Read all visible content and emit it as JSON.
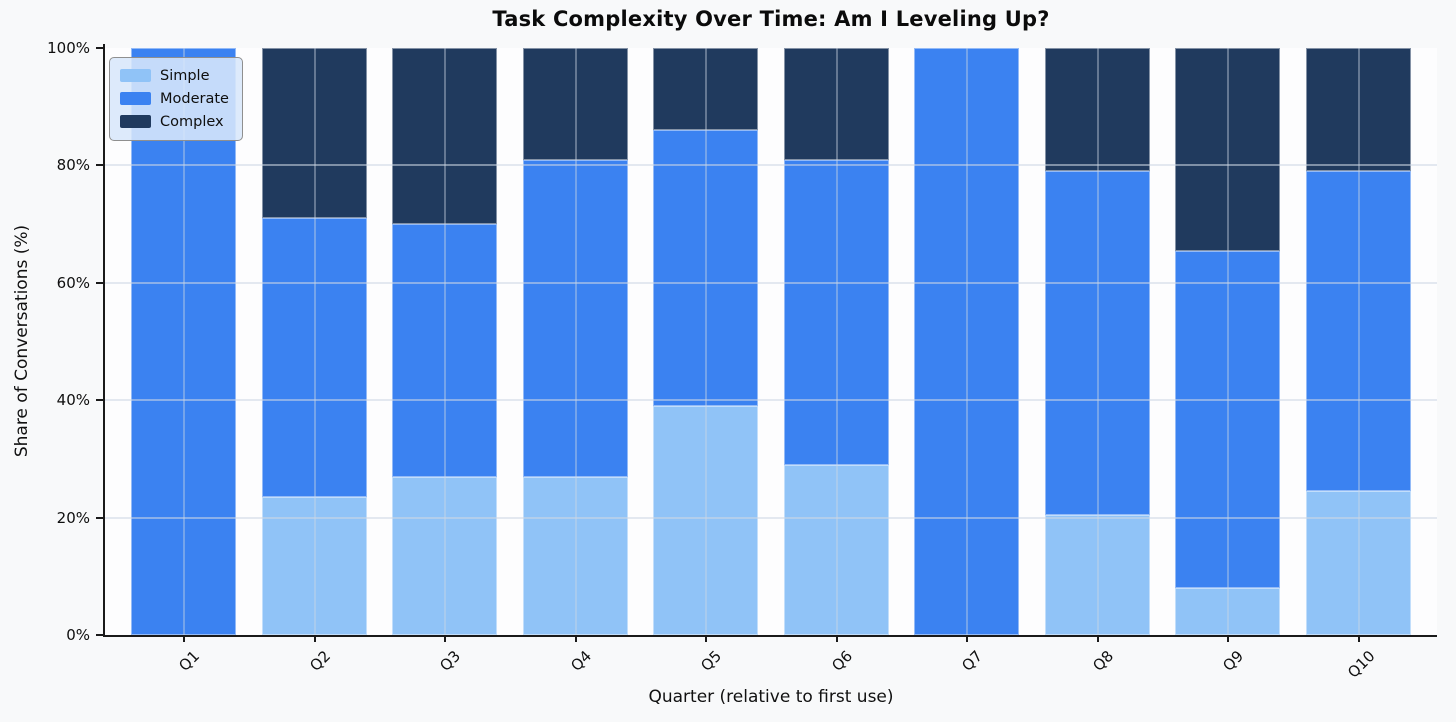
{
  "chart_data": {
    "type": "bar",
    "stacked": true,
    "title": "Task Complexity Over Time: Am I Leveling Up?",
    "xlabel": "Quarter (relative to first use)",
    "ylabel": "Share of Conversations (%)",
    "categories": [
      "Q1",
      "Q2",
      "Q3",
      "Q4",
      "Q5",
      "Q6",
      "Q7",
      "Q8",
      "Q9",
      "Q10"
    ],
    "series": [
      {
        "name": "Simple",
        "color": "#90C3F7",
        "values": [
          0,
          23.5,
          27,
          27,
          39,
          29,
          0,
          20.5,
          8,
          24.5
        ]
      },
      {
        "name": "Moderate",
        "color": "#3B82F1",
        "values": [
          100,
          47.5,
          43,
          54,
          47,
          52,
          100,
          58.5,
          57.5,
          54.5
        ]
      },
      {
        "name": "Complex",
        "color": "#203A5E",
        "values": [
          0,
          29,
          30,
          19,
          14,
          19,
          0,
          21,
          34.5,
          21
        ]
      }
    ],
    "y_ticks": [
      {
        "value": 0,
        "label": "0%"
      },
      {
        "value": 20,
        "label": "20%"
      },
      {
        "value": 40,
        "label": "40%"
      },
      {
        "value": 60,
        "label": "60%"
      },
      {
        "value": 80,
        "label": "80%"
      },
      {
        "value": 100,
        "label": "100%"
      }
    ],
    "ylim": [
      0,
      100
    ],
    "grid": true,
    "legend_position": "upper left",
    "colors": {
      "figure_background": "#F8F9FA",
      "axis": "#1A1A1A",
      "grid": "#CDD7E4"
    }
  }
}
